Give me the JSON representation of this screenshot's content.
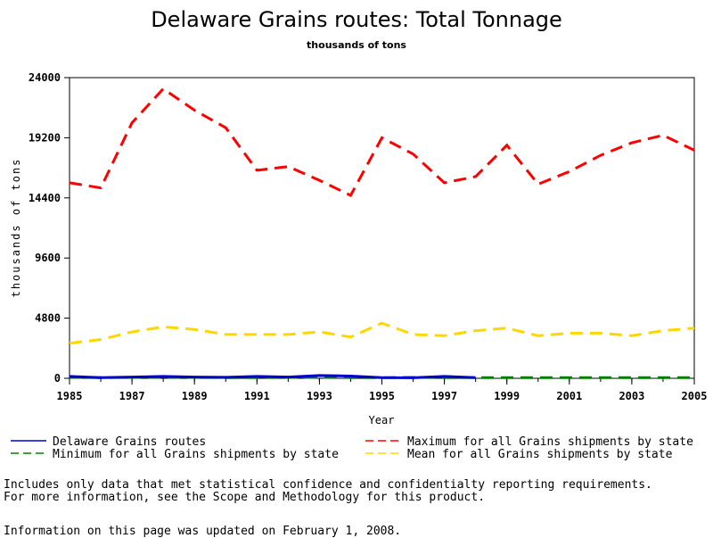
{
  "chart_data": {
    "type": "line",
    "title": "Delaware Grains routes: Total Tonnage",
    "subtitle": "thousands of tons",
    "xlabel": "Year",
    "ylabel": "thousands of tons",
    "xlim": [
      1985,
      2005
    ],
    "ylim": [
      0,
      24000
    ],
    "x_ticks": [
      "1985",
      "1987",
      "1989",
      "1991",
      "1993",
      "1995",
      "1997",
      "1999",
      "2001",
      "2003",
      "2005"
    ],
    "y_ticks": [
      "0",
      "4800",
      "9600",
      "14400",
      "19200",
      "24000"
    ],
    "grid": false,
    "legend": "bottom",
    "x": [
      1985,
      1986,
      1987,
      1988,
      1989,
      1990,
      1991,
      1992,
      1993,
      1994,
      1995,
      1996,
      1997,
      1998,
      1999,
      2000,
      2001,
      2002,
      2003,
      2004,
      2005
    ],
    "series": [
      {
        "name": "Delaware Grains routes",
        "color": "#0000cc",
        "dash": "solid",
        "values": [
          150,
          60,
          100,
          150,
          100,
          80,
          150,
          100,
          220,
          180,
          60,
          40,
          150,
          60,
          null,
          null,
          null,
          null,
          null,
          null,
          null
        ]
      },
      {
        "name": "Maximum for all Grains shipments by state",
        "color": "#ff0000",
        "dash": "dashed",
        "values": [
          15600,
          15200,
          20400,
          23100,
          21400,
          20000,
          16600,
          16900,
          15800,
          14600,
          19200,
          17900,
          15600,
          16100,
          18600,
          15500,
          16500,
          17800,
          18800,
          19400,
          18200
        ]
      },
      {
        "name": "Minimum for all Grains shipments by state",
        "color": "#008000",
        "dash": "dashed",
        "values": [
          80,
          60,
          70,
          80,
          70,
          60,
          60,
          70,
          80,
          60,
          60,
          70,
          60,
          60,
          60,
          60,
          60,
          60,
          60,
          60,
          60
        ]
      },
      {
        "name": "Mean for all Grains shipments by state",
        "color": "#ffd700",
        "dash": "dashed",
        "values": [
          2800,
          3100,
          3700,
          4100,
          3900,
          3500,
          3500,
          3500,
          3700,
          3300,
          4400,
          3500,
          3400,
          3800,
          4000,
          3400,
          3600,
          3600,
          3400,
          3800,
          4000
        ]
      }
    ]
  },
  "notes": {
    "line1": "Includes only data that met statistical confidence and confidentialty reporting requirements.",
    "line2": "For more information, see the Scope and Methodology for this product.",
    "updated": "Information on this page was updated on February 1, 2008."
  }
}
